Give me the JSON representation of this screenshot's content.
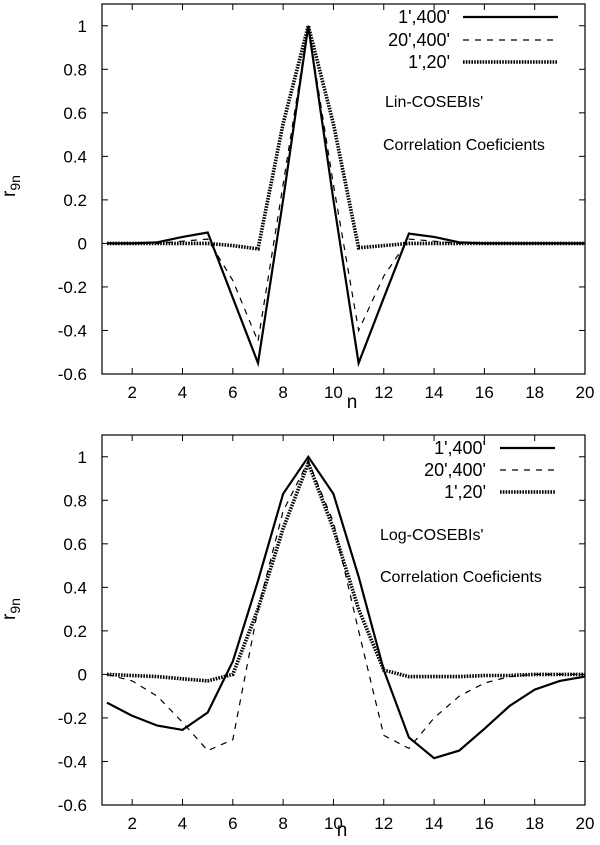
{
  "chart_data": [
    {
      "type": "line",
      "x": [
        1,
        2,
        3,
        4,
        5,
        6,
        7,
        8,
        9,
        10,
        11,
        12,
        13,
        14,
        15,
        16,
        17,
        18,
        19,
        20
      ],
      "xlim": [
        0.8,
        20
      ],
      "ylim": [
        -0.6,
        1.1
      ],
      "xticks": [
        2,
        4,
        6,
        8,
        10,
        12,
        14,
        16,
        18,
        20
      ],
      "yticks": [
        -0.6,
        -0.4,
        -0.2,
        0,
        0.2,
        0.4,
        0.6,
        0.8,
        1
      ],
      "ytick_labels": [
        "-0.6",
        "-0.4",
        "-0.2",
        "0",
        "0.2",
        "0.4",
        "0.6",
        "0.8",
        "1"
      ],
      "xlabel": "n",
      "ylabel_main": "r",
      "ylabel_sub": "9n",
      "annotations": [
        "Lin-COSEBIs'",
        "Correlation Coeficients"
      ],
      "legend_position": "top-right",
      "series": [
        {
          "name": "1',400'",
          "style": "solid",
          "values": [
            0,
            0,
            0.005,
            0.03,
            0.05,
            -0.25,
            -0.55,
            0.2,
            1.0,
            0.2,
            -0.55,
            -0.25,
            0.045,
            0.03,
            0.005,
            0,
            0,
            0,
            0,
            0
          ]
        },
        {
          "name": "20',400'",
          "style": "dashed",
          "values": [
            0,
            0,
            0,
            0.01,
            0.02,
            -0.17,
            -0.45,
            0.27,
            1.0,
            0.27,
            -0.4,
            -0.15,
            0.02,
            0.01,
            0,
            0,
            0,
            0,
            0,
            0
          ]
        },
        {
          "name": "1',20'",
          "style": "dotted",
          "values": [
            0,
            0,
            0,
            0,
            0,
            -0.01,
            -0.025,
            0.55,
            1.0,
            0.55,
            -0.02,
            -0.01,
            0,
            0,
            0,
            0,
            0,
            0,
            0,
            0
          ]
        }
      ]
    },
    {
      "type": "line",
      "x": [
        1,
        2,
        3,
        4,
        5,
        6,
        7,
        8,
        9,
        10,
        11,
        12,
        13,
        14,
        15,
        16,
        17,
        18,
        19,
        20
      ],
      "xlim": [
        0.8,
        20
      ],
      "ylim": [
        -0.6,
        1.1
      ],
      "xticks": [
        2,
        4,
        6,
        8,
        10,
        12,
        14,
        16,
        18,
        20
      ],
      "yticks": [
        -0.6,
        -0.4,
        -0.2,
        0,
        0.2,
        0.4,
        0.6,
        0.8,
        1
      ],
      "ytick_labels": [
        "-0.6",
        "-0.4",
        "-0.2",
        "0",
        "0.2",
        "0.4",
        "0.6",
        "0.8",
        "1"
      ],
      "xlabel": "n",
      "ylabel_main": "r",
      "ylabel_sub": "9n",
      "annotations": [
        "Log-COSEBIs'",
        "Correlation Coeficients"
      ],
      "legend_position": "top-right",
      "series": [
        {
          "name": "1',400'",
          "style": "solid",
          "values": [
            -0.13,
            -0.19,
            -0.235,
            -0.255,
            -0.175,
            0.06,
            0.43,
            0.83,
            1.0,
            0.83,
            0.45,
            0.02,
            -0.29,
            -0.385,
            -0.35,
            -0.25,
            -0.145,
            -0.07,
            -0.03,
            -0.01
          ]
        },
        {
          "name": "20',400'",
          "style": "dashed",
          "values": [
            0,
            -0.03,
            -0.1,
            -0.22,
            -0.35,
            -0.3,
            0.3,
            0.75,
            0.98,
            0.7,
            0.2,
            -0.28,
            -0.34,
            -0.2,
            -0.1,
            -0.04,
            -0.01,
            0,
            0,
            0
          ]
        },
        {
          "name": "1',20'",
          "style": "dotted",
          "values": [
            0,
            -0.005,
            -0.01,
            -0.02,
            -0.03,
            0,
            0.3,
            0.67,
            0.97,
            0.67,
            0.3,
            0.02,
            -0.01,
            -0.01,
            -0.01,
            -0.005,
            -0.005,
            0,
            0,
            0
          ]
        }
      ]
    }
  ]
}
